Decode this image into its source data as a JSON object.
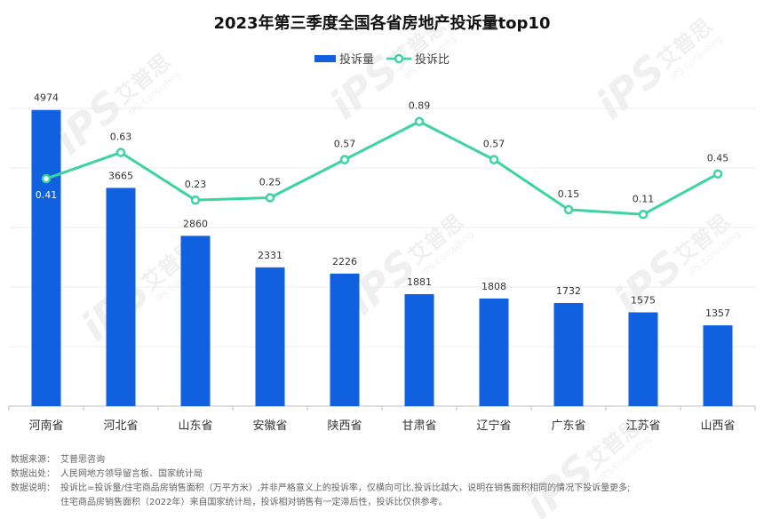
{
  "chart_data": {
    "type": "bar",
    "title": "2023年第三季度全国各省房地产投诉量top10",
    "categories": [
      "河南省",
      "河北省",
      "山东省",
      "安徽省",
      "陕西省",
      "甘肃省",
      "辽宁省",
      "广东省",
      "江苏省",
      "山西省"
    ],
    "series": [
      {
        "name": "投诉量",
        "type": "bar",
        "color": "#1060E0",
        "values": [
          4974,
          3665,
          2860,
          2331,
          2226,
          1881,
          1808,
          1732,
          1575,
          1357
        ]
      },
      {
        "name": "投诉比",
        "type": "line",
        "color": "#3CD4A0",
        "values": [
          0.41,
          0.63,
          0.23,
          0.25,
          0.57,
          0.89,
          0.57,
          0.15,
          0.11,
          0.45
        ]
      }
    ],
    "ylim_bar": [
      0,
      5000
    ],
    "ylim_line": [
      -1.5,
      1.0
    ],
    "grid": true,
    "legend_position": "top-center"
  },
  "notes": {
    "source_label": "数据来源：",
    "source_value": "艾普思咨询",
    "origin_label": "数据出处：",
    "origin_value": "人民网地方领导留言板、国家统计局",
    "desc_label": "数据说明：",
    "desc_line1": "投诉比=投诉量/住宅商品房销售面积（万平方米）,并非严格意义上的投诉率，仅横向可比,投诉比越大，说明在销售面积相同的情况下投诉量更多;",
    "desc_line2": "住宅商品房销售面积（2022年）来自国家统计局，投诉相对销售有一定滞后性，投诉比仅供参考。"
  },
  "watermark": {
    "logo_text": "艾普思",
    "logo_sub": "IPS Consulting",
    "mark": "iPS"
  }
}
